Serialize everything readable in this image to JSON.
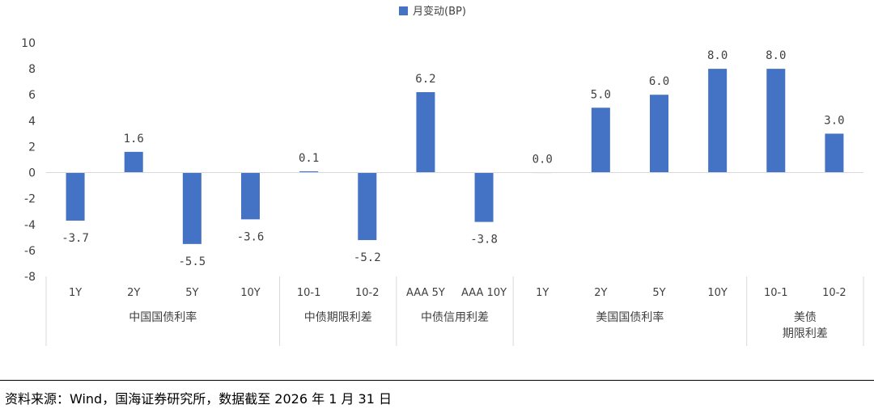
{
  "chart_data": {
    "type": "bar",
    "series": [
      {
        "name": "月变动(BP)",
        "color": "#4472C4",
        "values": [
          -3.7,
          1.6,
          -5.5,
          -3.6,
          0.1,
          -5.2,
          6.2,
          -3.8,
          0.0,
          5.0,
          6.0,
          8.0,
          8.0,
          3.0
        ]
      }
    ],
    "categories": [
      "1Y",
      "2Y",
      "5Y",
      "10Y",
      "10-1",
      "10-2",
      "AAA 5Y",
      "AAA 10Y",
      "1Y",
      "2Y",
      "5Y",
      "10Y",
      "10-1",
      "10-2"
    ],
    "data_labels": [
      "-3.7",
      "1.6",
      "-5.5",
      "-3.6",
      "0.1",
      "-5.2",
      "6.2",
      "-3.8",
      "0.0",
      "5.0",
      "6.0",
      "8.0",
      "8.0",
      "3.0"
    ],
    "groups": [
      {
        "label": "中国国债利率",
        "start": 0,
        "count": 4
      },
      {
        "label": "中债期限利差",
        "start": 4,
        "count": 2
      },
      {
        "label": "中债信用利差",
        "start": 6,
        "count": 2
      },
      {
        "label": "美国国债利率",
        "start": 8,
        "count": 4
      },
      {
        "label": [
          "美债",
          "期限利差"
        ],
        "start": 12,
        "count": 2
      }
    ],
    "ylim": [
      -8,
      10
    ],
    "yticks": [
      -8,
      -6,
      -4,
      -2,
      0,
      2,
      4,
      6,
      8,
      10
    ],
    "ytick_labels": [
      "-8",
      "-6",
      "-4",
      "-2",
      "0",
      "2",
      "4",
      "6",
      "8",
      "10"
    ],
    "legend_position": "top-center",
    "grid": false
  },
  "footer": {
    "source": "资料来源：Wind，国海证券研究所，数据截至 2026 年 1 月 31 日"
  }
}
